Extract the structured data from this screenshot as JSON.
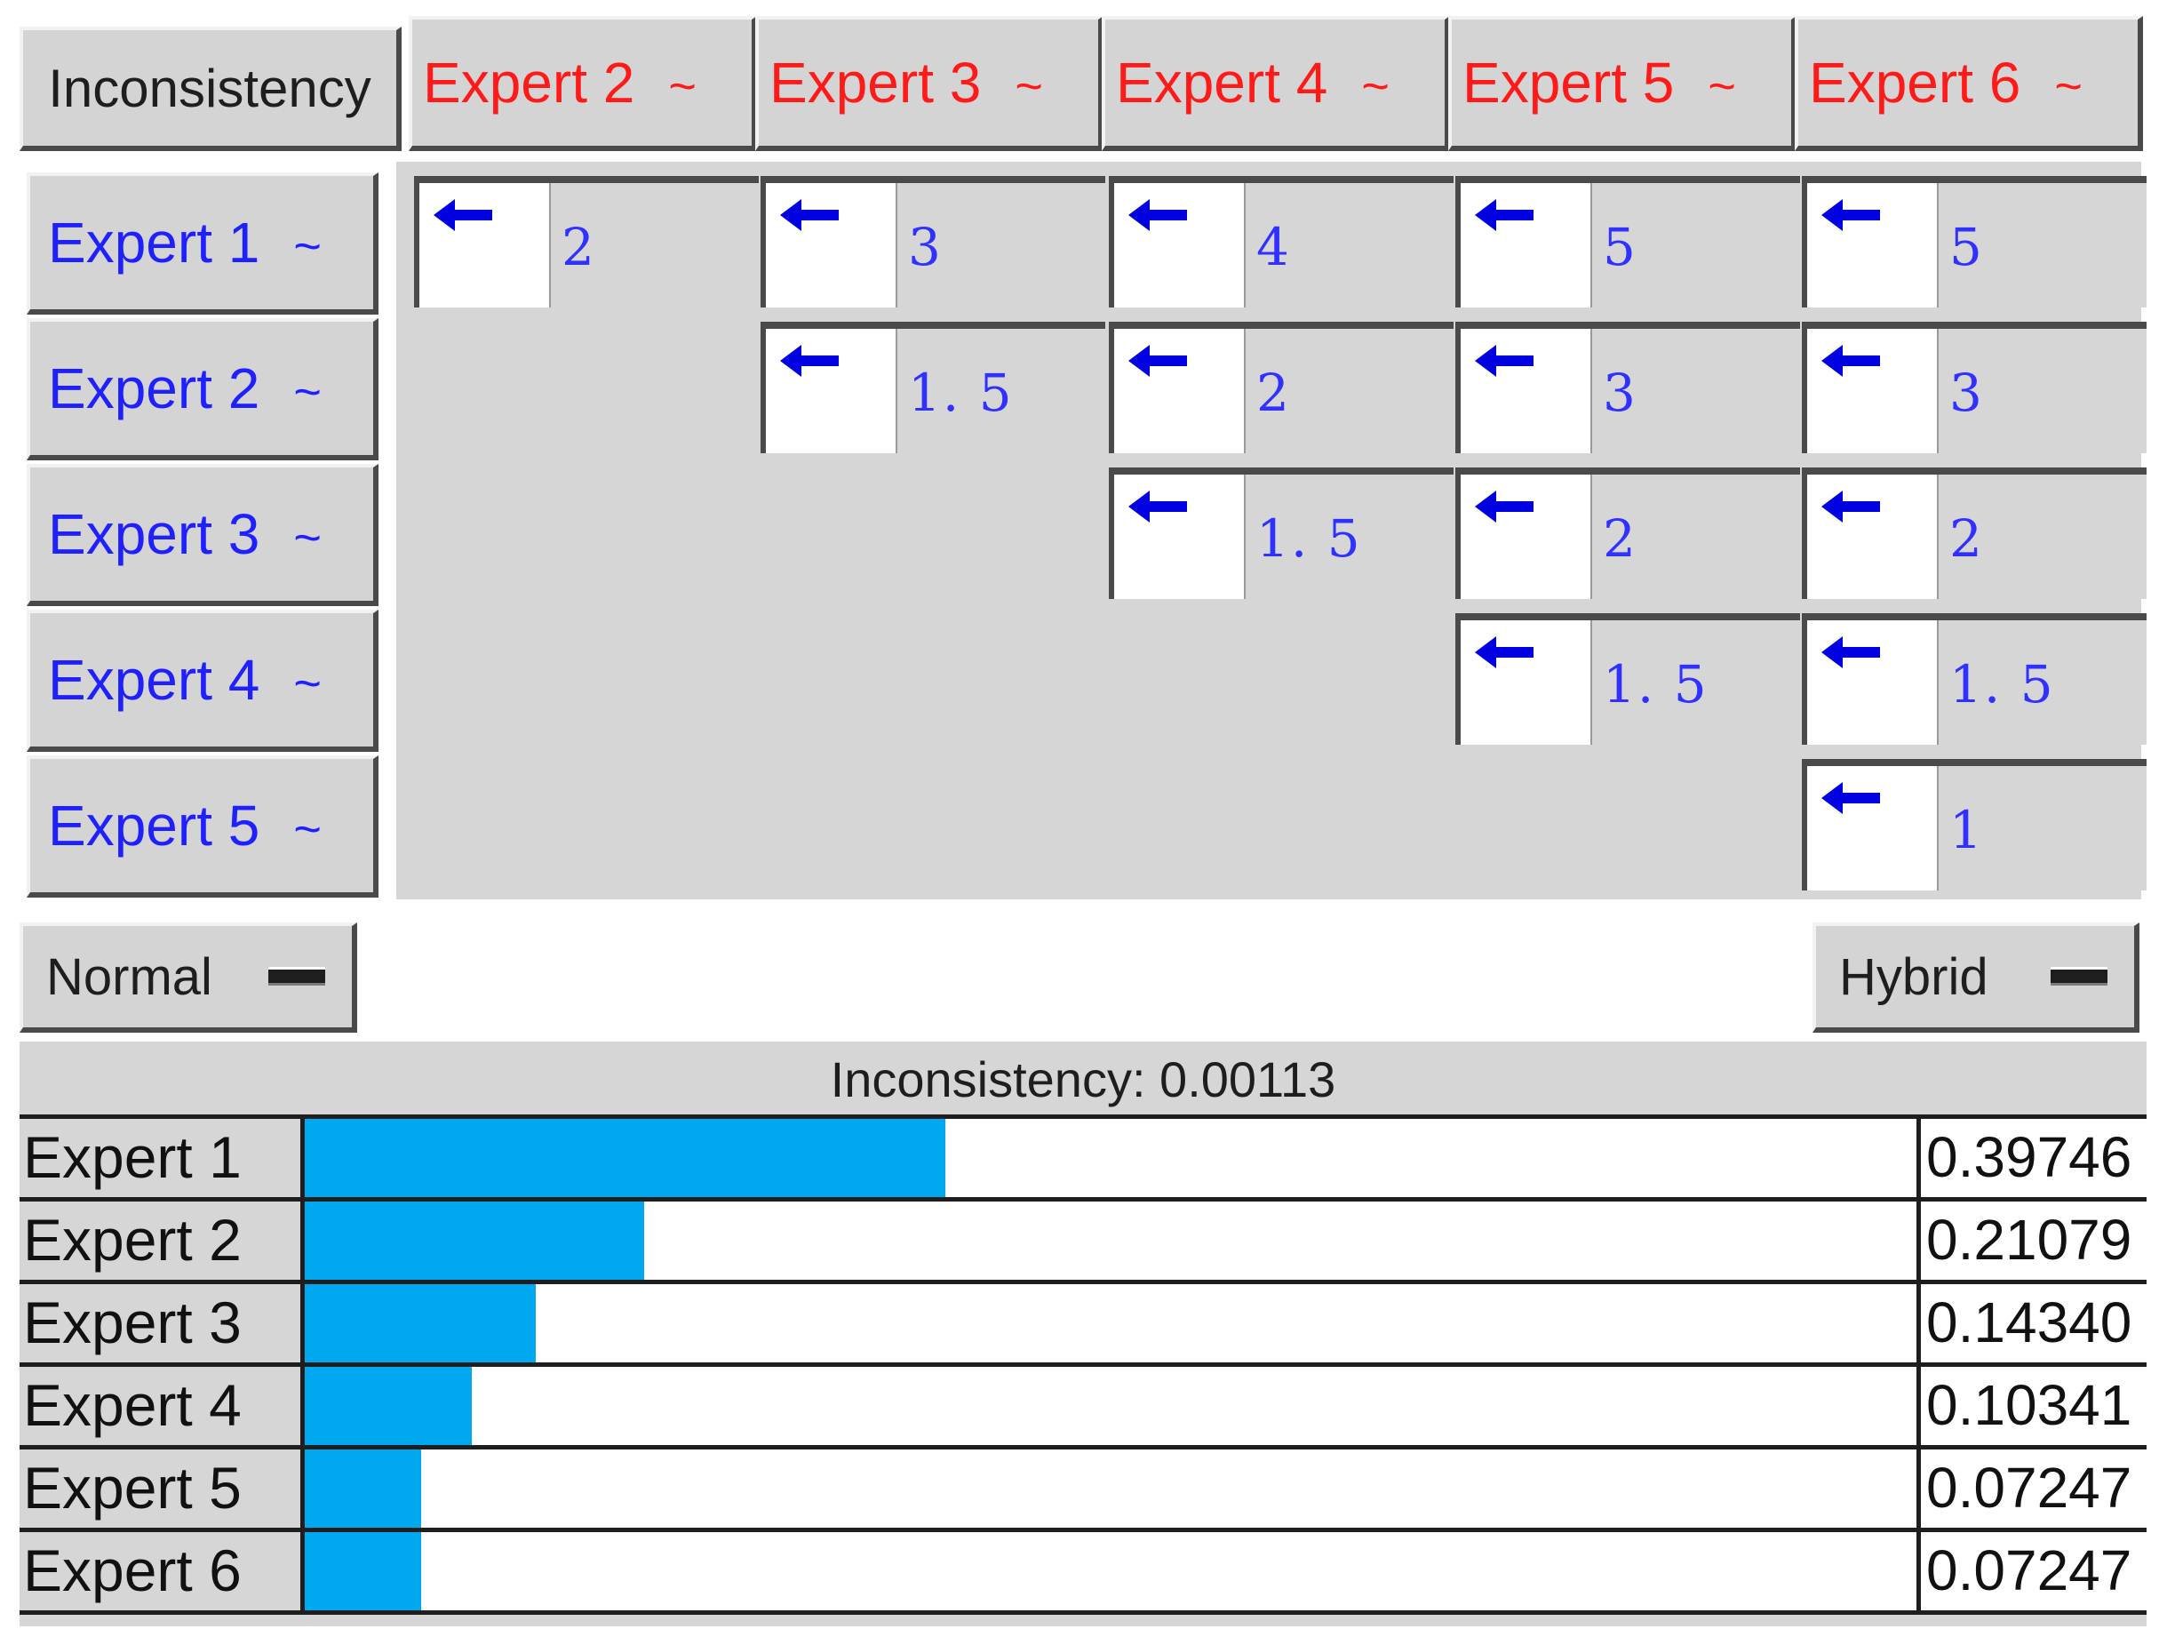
{
  "corner_label": "Inconsistency",
  "column_headers": [
    {
      "label": "Expert 2",
      "tilde": "~"
    },
    {
      "label": "Expert 3",
      "tilde": "~"
    },
    {
      "label": "Expert 4",
      "tilde": "~"
    },
    {
      "label": "Expert 5",
      "tilde": "~"
    },
    {
      "label": "Expert 6",
      "tilde": "~"
    }
  ],
  "row_headers": [
    {
      "label": "Expert 1",
      "tilde": "~"
    },
    {
      "label": "Expert 2",
      "tilde": "~"
    },
    {
      "label": "Expert 3",
      "tilde": "~"
    },
    {
      "label": "Expert 4",
      "tilde": "~"
    },
    {
      "label": "Expert 5",
      "tilde": "~"
    }
  ],
  "matrix": [
    [
      "2",
      "3",
      "4",
      "5",
      "5"
    ],
    [
      "1. 5",
      "2",
      "3",
      "3"
    ],
    [
      "1. 5",
      "2",
      "2"
    ],
    [
      "1. 5",
      "1. 5"
    ],
    [
      "1"
    ]
  ],
  "arrow_icon": "arrow-left-icon",
  "colors": {
    "column_header_text": "#ff1a1a",
    "row_header_text": "#2020ff",
    "cell_value_text": "#3030ff",
    "arrow": "#0000e0",
    "bar_fill": "#00a8f0"
  },
  "controls": {
    "left_dropdown": "Normal",
    "right_dropdown": "Hybrid"
  },
  "results": {
    "inconsistency_text": "Inconsistency: 0.00113",
    "rows": [
      {
        "label": "Expert 1",
        "value": "0.39746",
        "fill_fraction": 0.39746
      },
      {
        "label": "Expert 2",
        "value": "0.21079",
        "fill_fraction": 0.21079
      },
      {
        "label": "Expert 3",
        "value": "0.14340",
        "fill_fraction": 0.1434
      },
      {
        "label": "Expert 4",
        "value": "0.10341",
        "fill_fraction": 0.10341
      },
      {
        "label": "Expert 5",
        "value": "0.07247",
        "fill_fraction": 0.07247
      },
      {
        "label": "Expert 6",
        "value": "0.07247",
        "fill_fraction": 0.07247
      }
    ]
  }
}
